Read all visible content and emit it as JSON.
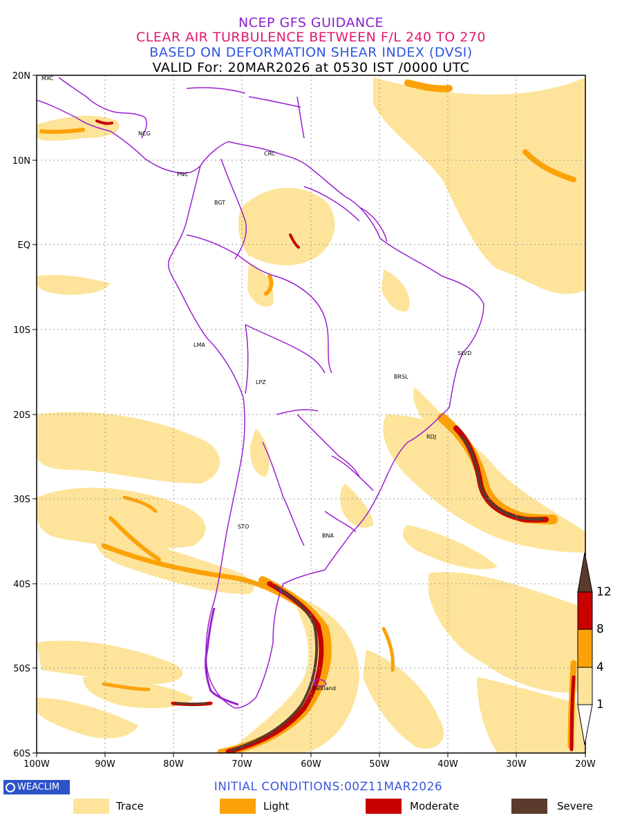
{
  "titles": {
    "line1": "NCEP GFS GUIDANCE",
    "line2": "CLEAR AIR TURBULENCE BETWEEN F/L 240 TO 270",
    "line3": "BASED ON DEFORMATION SHEAR INDEX (DVSI)",
    "line4": "VALID For: 20MAR2026 at 0530 IST /0000 UTC"
  },
  "title_colors": {
    "line1": "#8a1fcf",
    "line2": "#e0196e",
    "line3": "#2f55e0",
    "line4": "#000000"
  },
  "map": {
    "lon_range": [
      -100,
      -20
    ],
    "lat_range": [
      -60,
      20
    ],
    "lat_labels": [
      "20N",
      "10N",
      "EQ",
      "10S",
      "20S",
      "30S",
      "40S",
      "50S",
      "60S"
    ],
    "lon_labels": [
      "100W",
      "90W",
      "80W",
      "70W",
      "60W",
      "50W",
      "40W",
      "30W",
      "20W"
    ],
    "grid": "dotted",
    "coastline_color": "#9a1fcf",
    "cities": [
      {
        "name": "MXC",
        "lon": -99.1,
        "lat": 19.4
      },
      {
        "name": "NCG",
        "lon": -86.3,
        "lat": 12.1
      },
      {
        "name": "PNC",
        "lon": -79.5,
        "lat": 9.0
      },
      {
        "name": "CRC",
        "lon": -66.9,
        "lat": 10.5
      },
      {
        "name": "BGT",
        "lon": -74.1,
        "lat": 4.7
      },
      {
        "name": "LMA",
        "lon": -77.0,
        "lat": -12.0
      },
      {
        "name": "LPZ",
        "lon": -68.1,
        "lat": -16.5
      },
      {
        "name": "SLVD",
        "lon": -38.5,
        "lat": -12.9
      },
      {
        "name": "BRSL",
        "lon": -47.9,
        "lat": -15.8
      },
      {
        "name": "RDJ",
        "lon": -43.2,
        "lat": -22.9
      },
      {
        "name": "STO",
        "lon": -70.6,
        "lat": -33.4
      },
      {
        "name": "BNA",
        "lon": -58.4,
        "lat": -34.6
      },
      {
        "name": "Falkland",
        "lon": -59.5,
        "lat": -51.7
      }
    ]
  },
  "colorbar": {
    "levels": [
      "1",
      "4",
      "8",
      "12"
    ],
    "colors": [
      "#fde49a",
      "#fca208",
      "#c70000",
      "#5c3a2c"
    ]
  },
  "footer": {
    "logo_text": "WEACLIM",
    "initial_conditions": "INITIAL CONDITIONS:00Z11MAR2026"
  },
  "legend": [
    {
      "label": "Trace",
      "color": "#fde49a"
    },
    {
      "label": "Light",
      "color": "#fca208"
    },
    {
      "label": "Moderate",
      "color": "#c70000"
    },
    {
      "label": "Severe",
      "color": "#5c3a2c"
    }
  ]
}
